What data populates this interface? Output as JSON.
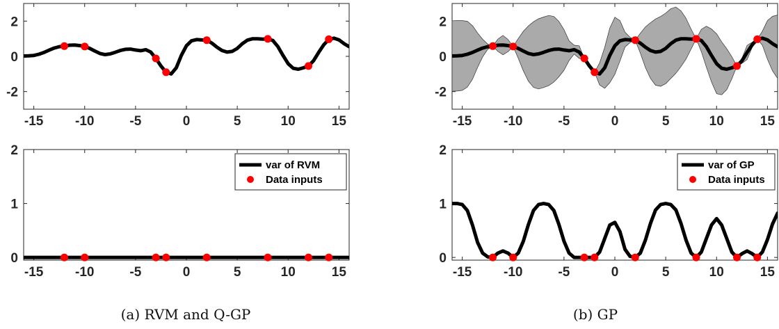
{
  "chart_data": [
    {
      "id": "a-top",
      "type": "line",
      "panel": "a",
      "xlim": [
        -16,
        16
      ],
      "ylim": [
        -3,
        3
      ],
      "xticks": [
        -15,
        -10,
        -5,
        0,
        5,
        10,
        15
      ],
      "yticks": [
        -2,
        0,
        2
      ],
      "show_band": false,
      "series": [
        {
          "kind": "mean",
          "x": [
            -16,
            -15.5,
            -15,
            -14.5,
            -14,
            -13.5,
            -13,
            -12.5,
            -12,
            -11.5,
            -11,
            -10.5,
            -10,
            -9.5,
            -9,
            -8.5,
            -8,
            -7.5,
            -7,
            -6.5,
            -6,
            -5.5,
            -5,
            -4.5,
            -4,
            -3.5,
            -3,
            -2.5,
            -2,
            -1.5,
            -1,
            -0.5,
            0,
            0.5,
            1,
            1.5,
            2,
            2.5,
            3,
            3.5,
            4,
            4.5,
            5,
            5.5,
            6,
            6.5,
            7,
            7.5,
            8,
            8.5,
            9,
            9.5,
            10,
            10.5,
            11,
            11.5,
            12,
            12.5,
            13,
            13.5,
            14,
            14.5,
            15,
            15.5,
            16
          ],
          "y": [
            0.02,
            0.03,
            0.05,
            0.12,
            0.22,
            0.35,
            0.47,
            0.55,
            0.58,
            0.63,
            0.64,
            0.61,
            0.56,
            0.45,
            0.3,
            0.16,
            0.1,
            0.14,
            0.23,
            0.33,
            0.4,
            0.41,
            0.36,
            0.32,
            0.38,
            0.24,
            -0.12,
            -0.55,
            -0.9,
            -1.0,
            -0.65,
            0.05,
            0.6,
            0.88,
            0.95,
            0.93,
            0.92,
            0.75,
            0.52,
            0.33,
            0.24,
            0.28,
            0.45,
            0.72,
            0.92,
            1.0,
            1.0,
            0.98,
            0.99,
            0.9,
            0.55,
            0.05,
            -0.42,
            -0.68,
            -0.73,
            -0.65,
            -0.55,
            -0.25,
            0.22,
            0.65,
            0.97,
            1.03,
            0.93,
            0.72,
            0.55
          ]
        },
        {
          "kind": "data",
          "x": [
            -12,
            -10,
            -3,
            -2,
            2,
            8,
            12,
            14
          ],
          "y": [
            0.58,
            0.56,
            -0.12,
            -0.9,
            0.92,
            0.99,
            -0.55,
            0.97
          ]
        }
      ]
    },
    {
      "id": "b-top",
      "type": "area",
      "panel": "b",
      "xlim": [
        -16,
        16
      ],
      "ylim": [
        -3,
        3
      ],
      "xticks": [
        -15,
        -10,
        -5,
        0,
        5,
        10,
        15
      ],
      "yticks": [
        -2,
        0,
        2
      ],
      "show_band": true,
      "band_color": "#aaaaaa",
      "series": [
        {
          "kind": "mean",
          "x": [
            -16,
            -15.5,
            -15,
            -14.5,
            -14,
            -13.5,
            -13,
            -12.5,
            -12,
            -11.5,
            -11,
            -10.5,
            -10,
            -9.5,
            -9,
            -8.5,
            -8,
            -7.5,
            -7,
            -6.5,
            -6,
            -5.5,
            -5,
            -4.5,
            -4,
            -3.5,
            -3,
            -2.5,
            -2,
            -1.5,
            -1,
            -0.5,
            0,
            0.5,
            1,
            1.5,
            2,
            2.5,
            3,
            3.5,
            4,
            4.5,
            5,
            5.5,
            6,
            6.5,
            7,
            7.5,
            8,
            8.5,
            9,
            9.5,
            10,
            10.5,
            11,
            11.5,
            12,
            12.5,
            13,
            13.5,
            14,
            14.5,
            15,
            15.5,
            16
          ],
          "y": [
            0.02,
            0.03,
            0.05,
            0.12,
            0.22,
            0.35,
            0.47,
            0.55,
            0.58,
            0.63,
            0.64,
            0.61,
            0.56,
            0.45,
            0.3,
            0.16,
            0.1,
            0.14,
            0.23,
            0.33,
            0.4,
            0.41,
            0.36,
            0.32,
            0.38,
            0.24,
            -0.12,
            -0.55,
            -0.9,
            -1.0,
            -0.65,
            0.05,
            0.6,
            0.88,
            0.95,
            0.93,
            0.92,
            0.75,
            0.52,
            0.33,
            0.24,
            0.28,
            0.45,
            0.72,
            0.92,
            1.0,
            1.0,
            0.98,
            0.99,
            0.9,
            0.55,
            0.05,
            -0.42,
            -0.68,
            -0.73,
            -0.65,
            -0.55,
            -0.25,
            0.22,
            0.65,
            0.97,
            1.03,
            0.93,
            0.72,
            0.55
          ]
        },
        {
          "kind": "band",
          "x": [
            -16,
            -15.5,
            -15,
            -14.5,
            -14,
            -13.5,
            -13,
            -12.5,
            -12,
            -11.5,
            -11,
            -10.5,
            -10,
            -9.5,
            -9,
            -8.5,
            -8,
            -7.5,
            -7,
            -6.5,
            -6,
            -5.5,
            -5,
            -4.5,
            -4,
            -3.5,
            -3,
            -2.5,
            -2,
            -1.5,
            -1,
            -0.5,
            0,
            0.5,
            1,
            1.5,
            2,
            2.5,
            3,
            3.5,
            4,
            4.5,
            5,
            5.5,
            6,
            6.5,
            7,
            7.5,
            8,
            8.5,
            9,
            9.5,
            10,
            10.5,
            11,
            11.5,
            12,
            12.5,
            13,
            13.5,
            14,
            14.5,
            15,
            15.5,
            16
          ],
          "halfwidth": [
            2.0,
            2.0,
            1.98,
            1.87,
            1.52,
            0.98,
            0.5,
            0.15,
            0.0,
            0.35,
            0.55,
            0.35,
            0.0,
            0.56,
            1.12,
            1.57,
            1.86,
            1.99,
            2.0,
            1.99,
            1.86,
            1.57,
            1.15,
            0.56,
            0.25,
            0.36,
            0.0,
            0.0,
            0.0,
            0.63,
            1.16,
            1.55,
            1.62,
            1.15,
            0.42,
            0.15,
            0.0,
            0.56,
            1.15,
            1.58,
            1.88,
            1.98,
            2.0,
            1.98,
            1.88,
            1.58,
            1.15,
            0.56,
            0.0,
            0.63,
            1.16,
            1.5,
            1.7,
            1.5,
            1.16,
            0.63,
            0.0,
            0.15,
            0.4,
            0.15,
            0.0,
            0.4,
            1.1,
            1.55,
            1.8
          ]
        },
        {
          "kind": "data",
          "x": [
            -12,
            -10,
            -3,
            -2,
            2,
            8,
            12,
            14
          ],
          "y": [
            0.58,
            0.56,
            -0.12,
            -0.9,
            0.92,
            0.99,
            -0.55,
            0.97
          ]
        }
      ]
    },
    {
      "id": "a-bottom",
      "type": "line",
      "panel": "a",
      "xlim": [
        -16,
        16
      ],
      "ylim": [
        -0.05,
        2
      ],
      "xticks": [
        -15,
        -10,
        -5,
        0,
        5,
        10,
        15
      ],
      "yticks": [
        0,
        1,
        2
      ],
      "show_band": false,
      "legend": [
        "var of RVM",
        "Data inputs"
      ],
      "series": [
        {
          "kind": "variance",
          "name": "var of RVM",
          "x": [
            -16,
            16
          ],
          "y": [
            0,
            0
          ]
        },
        {
          "kind": "data",
          "name": "Data inputs",
          "x": [
            -12,
            -10,
            -3,
            -2,
            2,
            8,
            12,
            14
          ],
          "y": [
            0,
            0,
            0,
            0,
            0,
            0,
            0,
            0
          ]
        }
      ]
    },
    {
      "id": "b-bottom",
      "type": "line",
      "panel": "b",
      "xlim": [
        -16,
        16
      ],
      "ylim": [
        -0.05,
        2
      ],
      "xticks": [
        -15,
        -10,
        -5,
        0,
        5,
        10,
        15
      ],
      "yticks": [
        0,
        1,
        2
      ],
      "show_band": false,
      "legend": [
        "var of GP",
        "Data inputs"
      ],
      "series": [
        {
          "kind": "variance",
          "name": "var of GP",
          "x": [
            -16,
            -15.5,
            -15,
            -14.5,
            -14,
            -13.5,
            -13,
            -12.5,
            -12,
            -11.5,
            -11,
            -10.5,
            -10,
            -9.5,
            -9,
            -8.5,
            -8,
            -7.5,
            -7,
            -6.5,
            -6,
            -5.5,
            -5,
            -4.5,
            -4,
            -3.5,
            -3,
            -2.5,
            -2,
            -1.5,
            -1,
            -0.5,
            0,
            0.5,
            1,
            1.5,
            2,
            2.5,
            3,
            3.5,
            4,
            4.5,
            5,
            5.5,
            6,
            6.5,
            7,
            7.5,
            8,
            8.5,
            9,
            9.5,
            10,
            10.5,
            11,
            11.5,
            12,
            12.5,
            13,
            13.5,
            14,
            14.5,
            15,
            15.5,
            16
          ],
          "y": [
            1.0,
            1.0,
            0.98,
            0.87,
            0.6,
            0.28,
            0.08,
            0.01,
            0.0,
            0.08,
            0.12,
            0.08,
            0.0,
            0.08,
            0.3,
            0.61,
            0.87,
            0.98,
            1.0,
            0.98,
            0.87,
            0.61,
            0.3,
            0.08,
            0.0,
            0.0,
            0.0,
            0.0,
            0.0,
            0.1,
            0.35,
            0.6,
            0.65,
            0.48,
            0.15,
            0.02,
            0.0,
            0.08,
            0.32,
            0.63,
            0.88,
            0.98,
            1.0,
            0.98,
            0.88,
            0.63,
            0.32,
            0.08,
            0.0,
            0.1,
            0.35,
            0.6,
            0.72,
            0.6,
            0.35,
            0.1,
            0.0,
            0.07,
            0.12,
            0.07,
            0.0,
            0.1,
            0.33,
            0.62,
            0.82
          ]
        },
        {
          "kind": "data",
          "name": "Data inputs",
          "x": [
            -12,
            -10,
            -3,
            -2,
            2,
            8,
            12,
            14
          ],
          "y": [
            0,
            0,
            0,
            0,
            0,
            0,
            0,
            0
          ]
        }
      ]
    }
  ],
  "captions": {
    "a": "(a) RVM and Q-GP",
    "b": "(b) GP"
  },
  "colors": {
    "line": "#000000",
    "data_points": "#ff0000",
    "band": "#aaaaaa",
    "tick_text": "#262626"
  }
}
